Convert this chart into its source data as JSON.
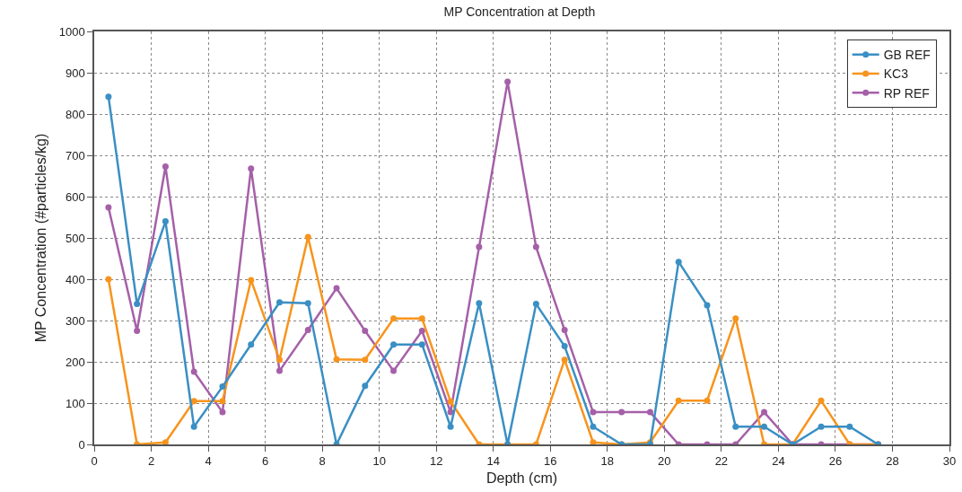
{
  "chart_data": {
    "type": "line",
    "title": "MP Concentration at Depth",
    "xlabel": "Depth (cm)",
    "ylabel": "MP Concentration (#particles/kg)",
    "x": [
      0.5,
      1.5,
      2.5,
      3.5,
      4.5,
      5.5,
      6.5,
      7.5,
      8.5,
      9.5,
      10.5,
      11.5,
      12.5,
      13.5,
      14.5,
      15.5,
      16.5,
      17.5,
      18.5,
      19.5,
      20.5,
      21.5,
      22.5,
      23.5,
      24.5,
      25.5,
      26.5,
      27.5
    ],
    "series": [
      {
        "name": "GB REF",
        "color": "#3a8fc4",
        "values": [
          842,
          340,
          540,
          43,
          140,
          242,
          344,
          342,
          0,
          142,
          242,
          242,
          43,
          342,
          0,
          340,
          238,
          43,
          0,
          0,
          442,
          337,
          43,
          43,
          0,
          43,
          43,
          0
        ]
      },
      {
        "name": "KC3",
        "color": "#f7941d",
        "values": [
          400,
          0,
          5,
          105,
          105,
          398,
          205,
          502,
          206,
          205,
          305,
          305,
          104,
          0,
          0,
          0,
          205,
          5,
          0,
          5,
          106,
          106,
          305,
          0,
          0,
          106,
          0,
          0
        ]
      },
      {
        "name": "RP REF",
        "color": "#a560a8",
        "values": [
          574,
          275,
          673,
          176,
          78,
          668,
          178,
          277,
          378,
          275,
          178,
          275,
          78,
          478,
          878,
          478,
          277,
          78,
          78,
          78,
          0,
          0,
          0,
          78,
          0,
          0,
          0,
          0
        ]
      }
    ],
    "xlim": [
      0,
      30
    ],
    "xticks": [
      0,
      2,
      4,
      6,
      8,
      10,
      12,
      14,
      16,
      18,
      20,
      22,
      24,
      26,
      28,
      30
    ],
    "ylim": [
      0,
      1000
    ],
    "yticks": [
      0,
      100,
      200,
      300,
      400,
      500,
      600,
      700,
      800,
      900,
      1000
    ],
    "grid": true,
    "legend": "top right",
    "marker": "circle",
    "line_style": "solid"
  }
}
